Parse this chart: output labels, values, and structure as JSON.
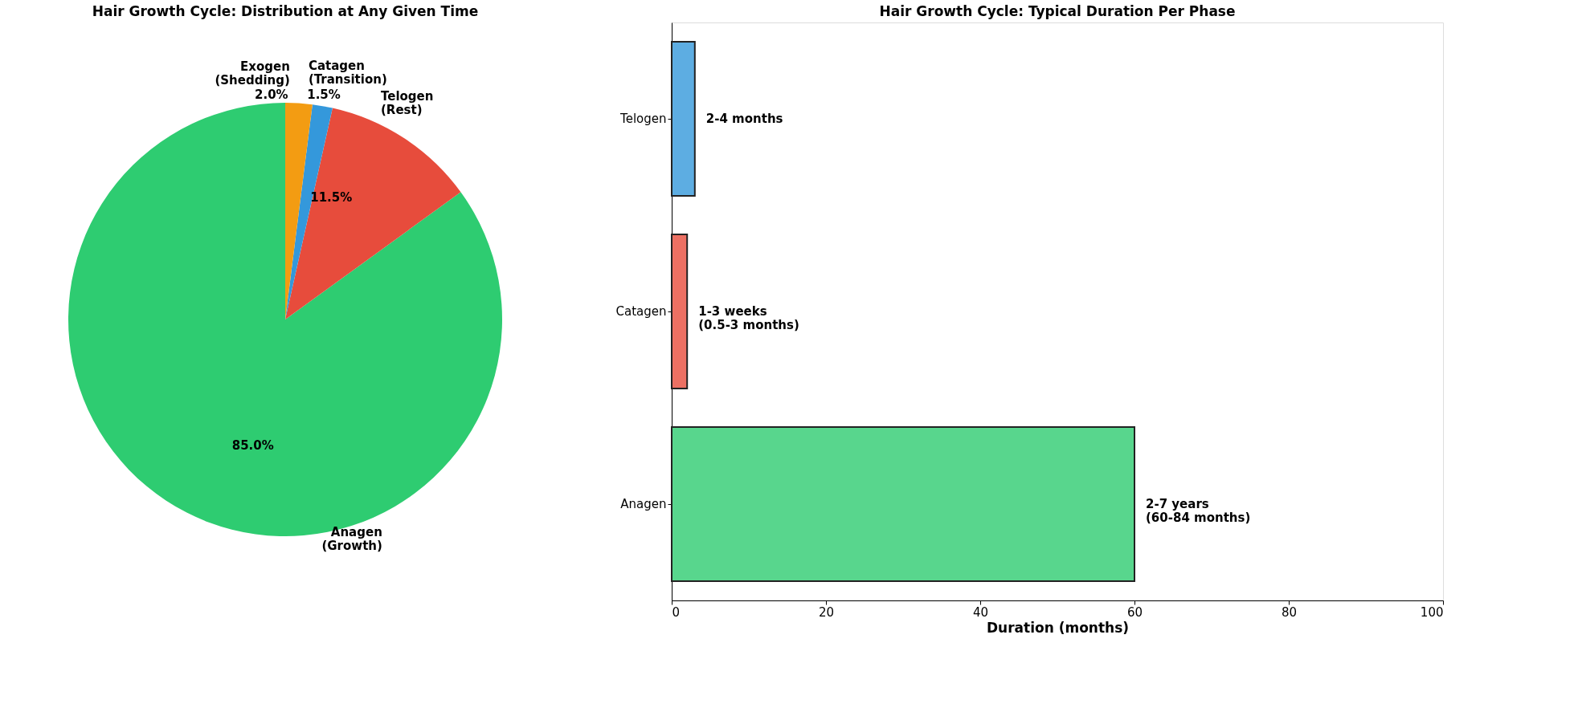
{
  "chart_data": [
    {
      "type": "pie",
      "title": "Hair Growth Cycle: Distribution at Any Given Time",
      "categories": [
        "Anagen\n(Growth)",
        "Telogen\n(Rest)",
        "Catagen\n(Transition)",
        "Exogen\n(Shedding)"
      ],
      "values": [
        85.0,
        11.5,
        1.5,
        2.0
      ],
      "colors": [
        "#2ecc71",
        "#e74c3c",
        "#3498db",
        "#f39c12"
      ],
      "value_labels": [
        "85.0%",
        "11.5%",
        "1.5%",
        "2.0%"
      ],
      "legend": false
    },
    {
      "type": "bar",
      "title": "Hair Growth Cycle: Typical Duration Per Phase",
      "orientation": "horizontal",
      "categories": [
        "Telogen",
        "Catagen",
        "Anagen"
      ],
      "values": [
        3,
        2,
        60
      ],
      "colors": [
        "#5dade2",
        "#ec7063",
        "#58d68d"
      ],
      "value_labels": [
        "2-4 months",
        "1-3 weeks\n(0.5-3 months)",
        "2-7 years\n(60-84 months)"
      ],
      "xlabel": "Duration (months)",
      "xlim": [
        0,
        100
      ],
      "xticks": [
        0,
        20,
        40,
        60,
        80,
        100
      ],
      "grid": false,
      "legend": false
    }
  ]
}
